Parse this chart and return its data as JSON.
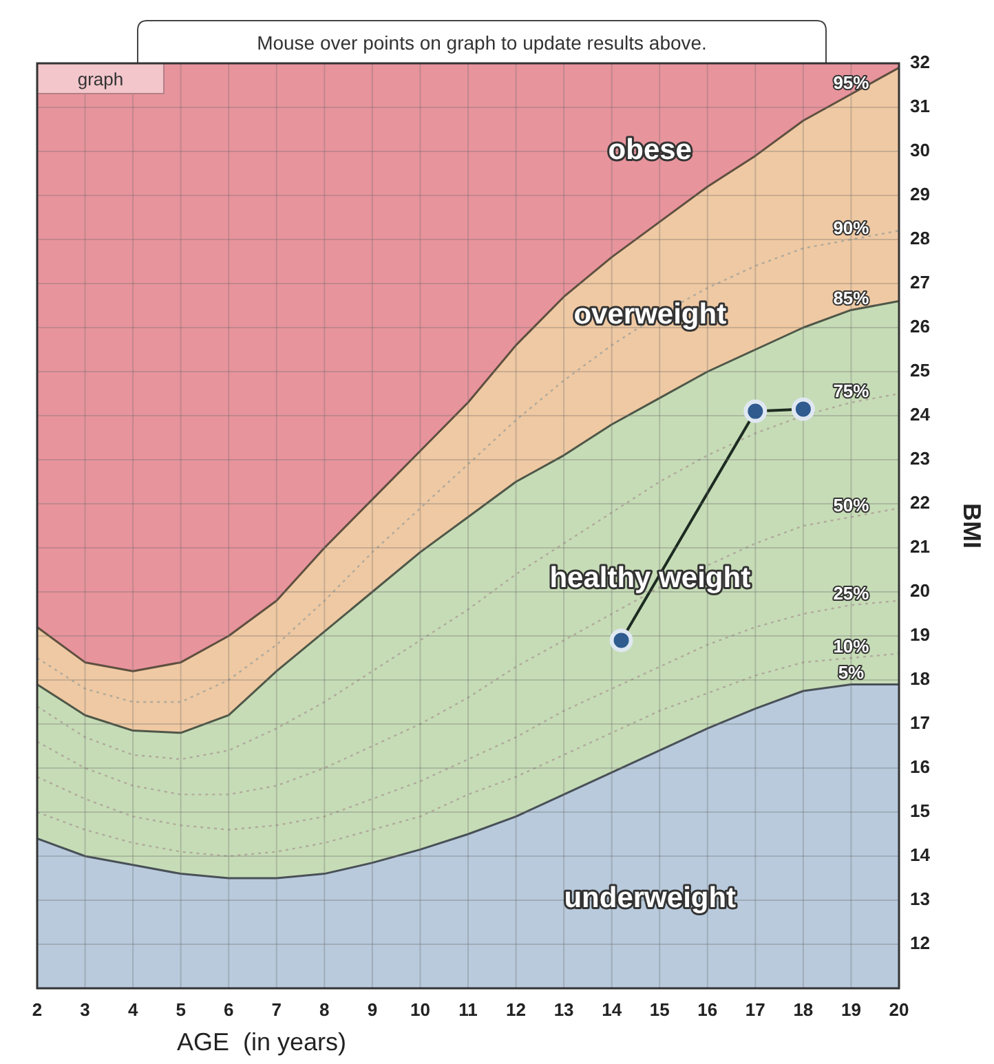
{
  "chart_data": {
    "type": "line",
    "subtitle": "Mouse over points on graph to update results above.",
    "xlabel": "AGE  (in years)",
    "ylabel": "BMI",
    "annotations": [
      "graph",
      "obese",
      "overweight",
      "healthy weight",
      "underweight"
    ],
    "x": [
      2,
      3,
      4,
      5,
      6,
      7,
      8,
      9,
      10,
      11,
      12,
      13,
      14,
      15,
      16,
      17,
      18,
      19,
      20
    ],
    "xlim": [
      2,
      20
    ],
    "ylim": [
      11,
      32
    ],
    "xticks": [
      2,
      3,
      4,
      5,
      6,
      7,
      8,
      9,
      10,
      11,
      12,
      13,
      14,
      15,
      16,
      17,
      18,
      19,
      20
    ],
    "yticks": [
      12,
      13,
      14,
      15,
      16,
      17,
      18,
      19,
      20,
      21,
      22,
      23,
      24,
      25,
      26,
      27,
      28,
      29,
      30,
      31,
      32
    ],
    "grid": true,
    "bands": [
      {
        "axis": "y",
        "from": 18.2,
        "to": 32,
        "color": "#e8949c"
      }
    ],
    "series": [
      {
        "name": "95%",
        "type": "area",
        "color": "#efc9a3",
        "values": [
          19.2,
          18.4,
          18.2,
          18.4,
          19.0,
          19.8,
          21.0,
          22.1,
          23.2,
          24.3,
          25.6,
          26.7,
          27.6,
          28.4,
          29.2,
          29.9,
          30.7,
          31.3,
          31.9
        ]
      },
      {
        "name": "85%",
        "type": "area",
        "color": "#c6dcb6",
        "values": [
          17.9,
          17.2,
          16.85,
          16.8,
          17.2,
          18.2,
          19.1,
          20.0,
          20.9,
          21.7,
          22.5,
          23.1,
          23.8,
          24.4,
          25.0,
          25.5,
          26.0,
          26.4,
          26.6
        ]
      },
      {
        "name": "5%",
        "type": "area",
        "color": "#b8cadc",
        "values": [
          14.4,
          14.0,
          13.8,
          13.6,
          13.5,
          13.5,
          13.6,
          13.85,
          14.15,
          14.5,
          14.9,
          15.4,
          15.9,
          16.4,
          16.9,
          17.35,
          17.75,
          17.9,
          17.9
        ]
      },
      {
        "name": "90%",
        "type": "line",
        "line_style": "dotted",
        "color": "#b0aa9c",
        "values": [
          18.5,
          17.8,
          17.5,
          17.5,
          18.0,
          18.8,
          19.8,
          20.9,
          21.9,
          22.9,
          23.9,
          24.8,
          25.6,
          26.3,
          26.9,
          27.4,
          27.8,
          28.0,
          28.2
        ]
      },
      {
        "name": "75%",
        "type": "line",
        "line_style": "dotted",
        "color": "#b0aa9c",
        "values": [
          17.4,
          16.7,
          16.3,
          16.2,
          16.4,
          16.9,
          17.5,
          18.2,
          18.9,
          19.6,
          20.4,
          21.1,
          21.8,
          22.5,
          23.1,
          23.6,
          24.0,
          24.3,
          24.5
        ]
      },
      {
        "name": "50%",
        "type": "line",
        "line_style": "dotted",
        "color": "#b0aa9c",
        "values": [
          16.6,
          16.0,
          15.6,
          15.4,
          15.4,
          15.6,
          16.0,
          16.5,
          17.0,
          17.6,
          18.3,
          18.9,
          19.5,
          20.1,
          20.6,
          21.1,
          21.5,
          21.7,
          21.9
        ]
      },
      {
        "name": "25%",
        "type": "line",
        "line_style": "dotted",
        "color": "#b0aa9c",
        "values": [
          15.8,
          15.3,
          14.9,
          14.7,
          14.6,
          14.7,
          14.9,
          15.3,
          15.7,
          16.2,
          16.7,
          17.3,
          17.8,
          18.3,
          18.8,
          19.2,
          19.5,
          19.7,
          19.8
        ]
      },
      {
        "name": "10%",
        "type": "line",
        "line_style": "dotted",
        "color": "#b0aa9c",
        "values": [
          15.0,
          14.6,
          14.3,
          14.1,
          14.0,
          14.1,
          14.3,
          14.6,
          14.9,
          15.4,
          15.8,
          16.3,
          16.8,
          17.3,
          17.7,
          18.1,
          18.4,
          18.5,
          18.6
        ]
      },
      {
        "marker": "circle",
        "line_style": "solid",
        "color": "#2f5b8f",
        "x": [
          14.2,
          17.0,
          18.0
        ],
        "values": [
          18.9,
          24.1,
          24.15
        ]
      }
    ]
  }
}
